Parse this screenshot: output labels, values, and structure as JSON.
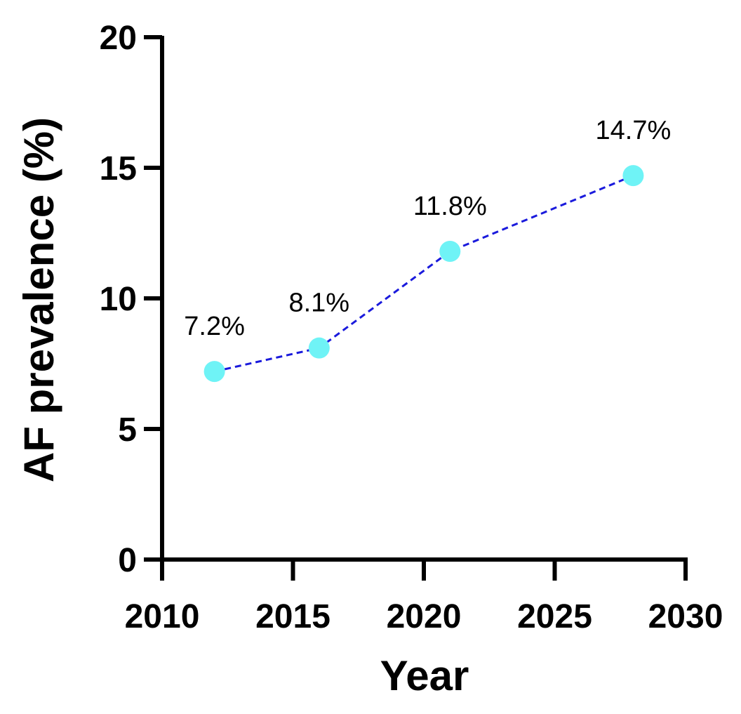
{
  "chart_data": {
    "type": "line",
    "title": "",
    "xlabel": "Year",
    "ylabel": "AF prevalence (%)",
    "xlim": [
      2010,
      2030
    ],
    "ylim": [
      0,
      20
    ],
    "xticks": [
      "2010",
      "2015",
      "2020",
      "2025",
      "2030"
    ],
    "yticks": [
      "0",
      "5",
      "10",
      "15",
      "20"
    ],
    "grid": false,
    "legend": "none",
    "series": [
      {
        "x": [
          2012,
          2016,
          2021,
          2028
        ],
        "y": [
          7.2,
          8.1,
          11.8,
          14.7
        ],
        "labels": [
          "7.2%",
          "8.1%",
          "11.8%",
          "14.7%"
        ],
        "line_color": "#1a1adc",
        "line_style": "dashed",
        "marker_color": "#6ff3f6"
      }
    ]
  }
}
